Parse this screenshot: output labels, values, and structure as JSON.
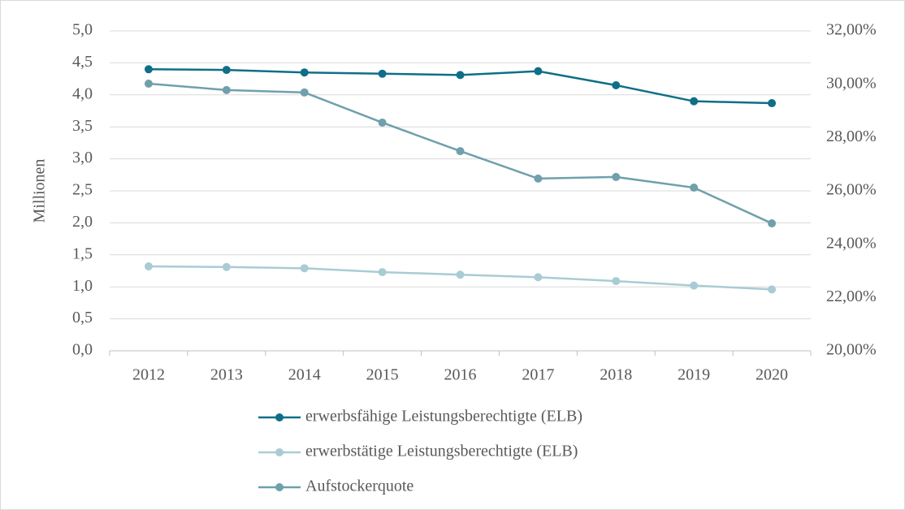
{
  "chart_data": {
    "type": "line",
    "categories": [
      "2012",
      "2013",
      "2014",
      "2015",
      "2016",
      "2017",
      "2018",
      "2019",
      "2020"
    ],
    "y_label": "Millionen",
    "ylim": [
      0,
      5
    ],
    "yticks": [
      {
        "value": 0,
        "label": "0,0"
      },
      {
        "value": 0.5,
        "label": "0,5"
      },
      {
        "value": 1,
        "label": "1,0"
      },
      {
        "value": 1.5,
        "label": "1,5"
      },
      {
        "value": 2,
        "label": "2,0"
      },
      {
        "value": 2.5,
        "label": "2,5"
      },
      {
        "value": 3,
        "label": "3,0"
      },
      {
        "value": 3.5,
        "label": "3,5"
      },
      {
        "value": 4,
        "label": "4,0"
      },
      {
        "value": 4.5,
        "label": "4,5"
      },
      {
        "value": 5,
        "label": "5,0"
      }
    ],
    "y2lim": [
      20,
      32
    ],
    "y2ticks": [
      {
        "value": 20,
        "label": "20,00%"
      },
      {
        "value": 22,
        "label": "22,00%"
      },
      {
        "value": 24,
        "label": "24,00%"
      },
      {
        "value": 26,
        "label": "26,00%"
      },
      {
        "value": 28,
        "label": "28,00%"
      },
      {
        "value": 30,
        "label": "30,00%"
      },
      {
        "value": 32,
        "label": "32,00%"
      }
    ],
    "grid": true,
    "legend": "bottom",
    "series": [
      {
        "name": "erwerbsfähige Leistungsberechtigte (ELB)",
        "color": "#0e6f87",
        "values": [
          4.4,
          4.39,
          4.35,
          4.33,
          4.31,
          4.37,
          4.15,
          3.9,
          3.87
        ]
      },
      {
        "name": "erwerbstätige Leistungsberechtigte (ELB)",
        "color": "#a9ccd4",
        "values": [
          1.32,
          1.31,
          1.29,
          1.23,
          1.19,
          1.15,
          1.09,
          1.02,
          0.96
        ]
      },
      {
        "name": "Aufstockerquote",
        "color": "#6fa0ac",
        "axis": "y2",
        "values": [
          30.02,
          29.78,
          29.69,
          28.56,
          27.49,
          26.46,
          26.52,
          26.12,
          24.78
        ]
      }
    ]
  }
}
